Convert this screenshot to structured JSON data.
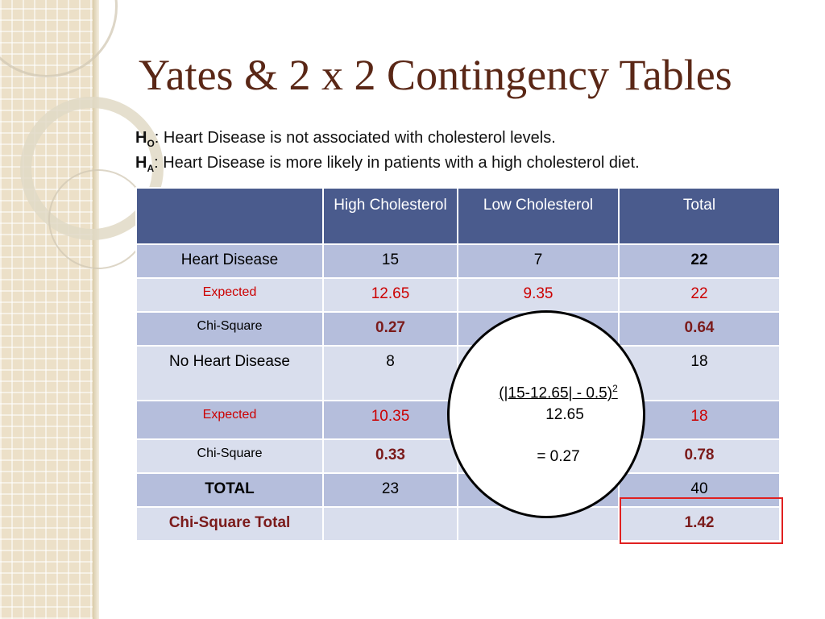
{
  "title": "Yates & 2 x 2 Contingency Tables",
  "hypotheses": {
    "null": {
      "letter": "H",
      "sub": "O",
      "text": ": Heart Disease is not associated with cholesterol levels."
    },
    "alt": {
      "letter": "H",
      "sub": "A",
      "text": ": Heart Disease is more likely in patients with a high cholesterol diet."
    }
  },
  "table": {
    "headers": [
      "",
      "High Cholesterol",
      "Low Cholesterol",
      "Total"
    ],
    "rows": [
      {
        "label": "Heart Disease",
        "cells": [
          "15",
          "7",
          "22"
        ]
      },
      {
        "label": "Expected",
        "cells": [
          "12.65",
          "9.35",
          "22"
        ]
      },
      {
        "label": "Chi-Square",
        "cells": [
          "0.27",
          "",
          "0.64"
        ]
      },
      {
        "label": "No Heart Disease",
        "cells": [
          "8",
          "",
          "18"
        ]
      },
      {
        "label": "Expected",
        "cells": [
          "10.35",
          "",
          "18"
        ]
      },
      {
        "label": "Chi-Square",
        "cells": [
          "0.33",
          "",
          "0.78"
        ]
      },
      {
        "label": "TOTAL",
        "cells": [
          "23",
          "",
          "40"
        ]
      },
      {
        "label": "Chi-Square Total",
        "cells": [
          "",
          "",
          "1.42"
        ]
      }
    ]
  },
  "callout": {
    "numerator": "(|15-12.65| - 0.5)",
    "exponent": "2",
    "denominator": "12.65",
    "result": "= 0.27"
  },
  "colors": {
    "title": "#5a2716",
    "header_bg": "#4a5b8d",
    "row_dark": "#b5bedc",
    "row_light": "#d9deed",
    "expected_text": "#cc0000",
    "total_label": "#7b1b1b",
    "highlight_box": "#e02020"
  }
}
